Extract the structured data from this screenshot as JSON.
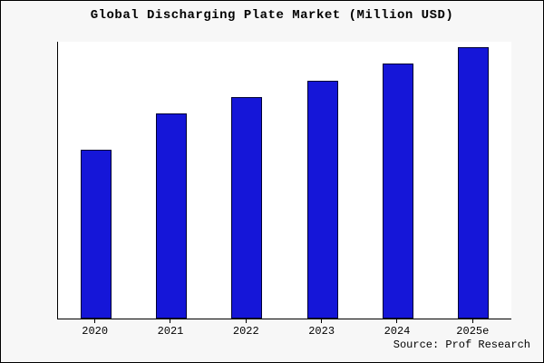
{
  "chart_data": {
    "type": "bar",
    "title": "Global Discharging Plate Market (Million USD)",
    "categories": [
      "2020",
      "2021",
      "2022",
      "2023",
      "2024",
      "2025e"
    ],
    "values": [
      61,
      74,
      80,
      86,
      92,
      98
    ],
    "xlabel": "",
    "ylabel": "",
    "ylim": [
      0,
      100
    ],
    "grid": false,
    "legend": "none",
    "bar_color": "#1516d8",
    "bar_border_color": "#000033",
    "source": "Source: Prof Research"
  }
}
